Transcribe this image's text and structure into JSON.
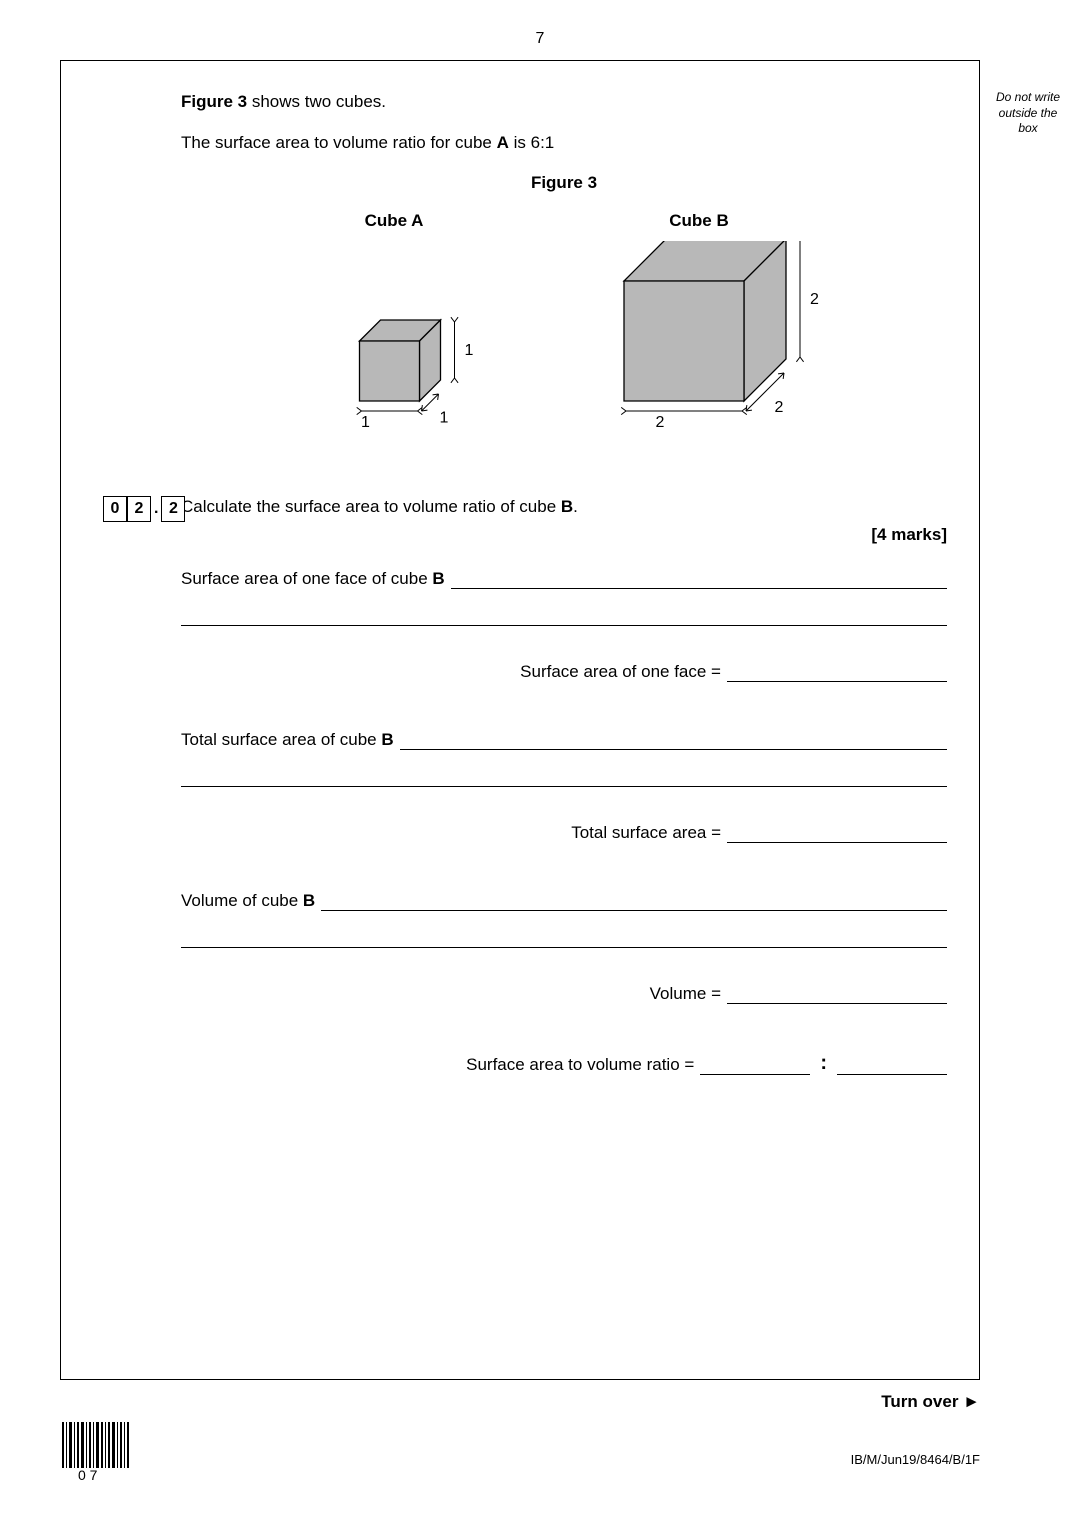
{
  "page_number": "7",
  "margin_note": "Do not write outside the box",
  "intro_line1_pre": "Figure 3",
  "intro_line1_post": " shows two cubes.",
  "intro_line2_pre": "The surface area to volume ratio for cube ",
  "intro_line2_bold": "A",
  "intro_line2_post": " is 6:1",
  "figure_title": "Figure 3",
  "cubes": {
    "a": {
      "label": "Cube A",
      "dim": "1",
      "svg_size": 130,
      "cube_size": 60
    },
    "b": {
      "label": "Cube B",
      "dim": "2",
      "svg_size": 200,
      "cube_size": 120
    }
  },
  "cube_fill": "#b8b8b8",
  "cube_stroke": "#000000",
  "question": {
    "number_major": [
      "0",
      "2"
    ],
    "number_minor": [
      "2"
    ],
    "text_pre": "Calculate the surface area to volume ratio of cube ",
    "text_bold": "B",
    "text_post": ".",
    "marks": "[4 marks]"
  },
  "answers": {
    "sa_face_label_pre": "Surface area of one face of cube ",
    "sa_face_label_bold": "B",
    "sa_face_result": "Surface area of one face =",
    "tsa_label_pre": "Total surface area of cube ",
    "tsa_label_bold": "B",
    "tsa_result": "Total surface area =",
    "vol_label_pre": "Volume of cube ",
    "vol_label_bold": "B",
    "vol_result": "Volume =",
    "ratio_label": "Surface area to volume ratio =",
    "ratio_sep": ":"
  },
  "turn_over": "Turn over ►",
  "footer_code": "IB/M/Jun19/8464/B/1F",
  "barcode_label": "0 7"
}
